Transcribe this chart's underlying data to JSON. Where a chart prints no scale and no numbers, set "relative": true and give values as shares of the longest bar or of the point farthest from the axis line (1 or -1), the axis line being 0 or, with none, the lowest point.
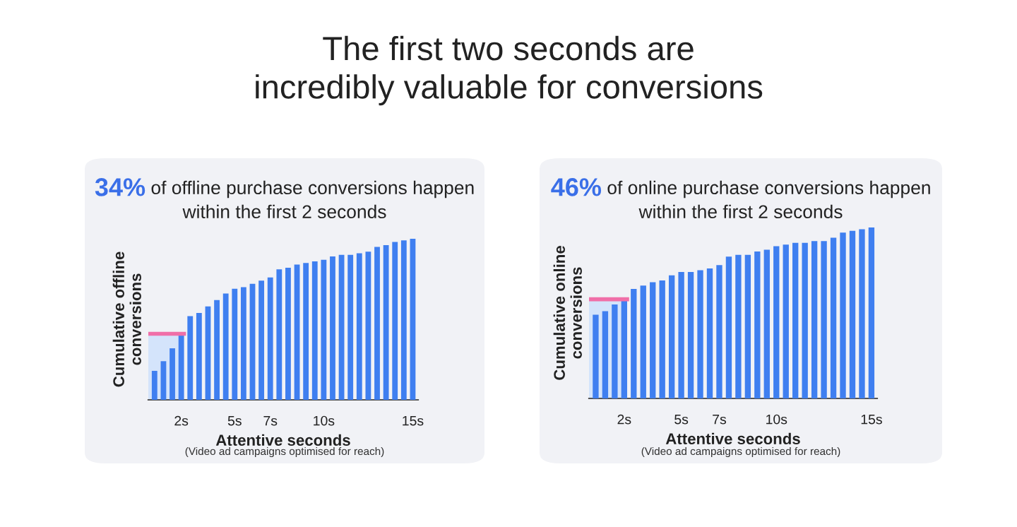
{
  "chart_data": [
    {
      "type": "bar",
      "title": "The first two seconds are\nincredibly valuable for conversions",
      "subtitle": "34% of offline purchase conversions happen\nwithin the first 2 seconds",
      "xlabel": "Attentive seconds",
      "ylabel": "Cumulative offline\nconversions",
      "annotations": [
        "(Video ad campaigns optimised for reach)"
      ],
      "relative": true,
      "grid": false,
      "categories": [
        null,
        null,
        null,
        "2s",
        null,
        null,
        null,
        null,
        null,
        "5s",
        null,
        null,
        null,
        "7s",
        null,
        null,
        null,
        null,
        null,
        "10s",
        null,
        null,
        null,
        null,
        null,
        null,
        null,
        null,
        null,
        "15s"
      ],
      "color": "#3f7ff0",
      "values": [
        0.18,
        0.24,
        0.32,
        0.41,
        0.52,
        0.54,
        0.58,
        0.62,
        0.66,
        0.69,
        0.7,
        0.72,
        0.74,
        0.76,
        0.81,
        0.82,
        0.84,
        0.85,
        0.86,
        0.87,
        0.89,
        0.9,
        0.9,
        0.91,
        0.92,
        0.95,
        0.96,
        0.98,
        0.99,
        1
      ],
      "ref_lines": [
        {
          "axis": "y",
          "value": 0.41,
          "color": "#f06fa8"
        }
      ],
      "bands": [
        {
          "axis": "y",
          "from": 0,
          "to": 0.41,
          "color": "#d4e4fb"
        }
      ]
    },
    {
      "type": "bar",
      "subtitle": "46% of online purchase conversions happen\nwithin the first 2 seconds",
      "xlabel": "Attentive seconds",
      "ylabel": "Cumulative online\nconversions",
      "annotations": [
        "(Video ad campaigns optimised for reach)"
      ],
      "relative": true,
      "grid": false,
      "categories": [
        null,
        null,
        null,
        "2s",
        null,
        null,
        null,
        null,
        null,
        "5s",
        null,
        null,
        null,
        "7s",
        null,
        null,
        null,
        null,
        null,
        "10s",
        null,
        null,
        null,
        null,
        null,
        null,
        null,
        null,
        null,
        "15s"
      ],
      "color": "#3f7ff0",
      "values": [
        0.49,
        0.51,
        0.55,
        0.58,
        0.64,
        0.66,
        0.68,
        0.69,
        0.72,
        0.74,
        0.74,
        0.75,
        0.76,
        0.78,
        0.83,
        0.84,
        0.84,
        0.86,
        0.87,
        0.89,
        0.9,
        0.91,
        0.91,
        0.92,
        0.92,
        0.94,
        0.97,
        0.98,
        0.99,
        1
      ],
      "ref_lines": [
        {
          "axis": "y",
          "value": 0.58,
          "color": "#f06fa8"
        }
      ],
      "bands": [
        {
          "axis": "y",
          "from": 0,
          "to": 0.58,
          "color": "#d4e4fb"
        }
      ]
    }
  ]
}
